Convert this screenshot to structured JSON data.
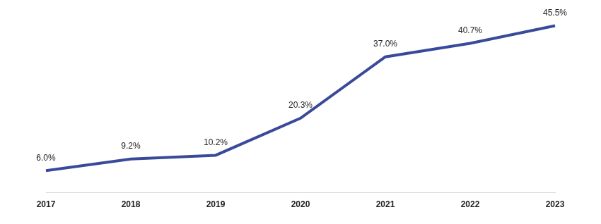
{
  "chart_data": {
    "type": "line",
    "categories": [
      "2017",
      "2018",
      "2019",
      "2020",
      "2021",
      "2022",
      "2023"
    ],
    "values": [
      6.0,
      9.2,
      10.2,
      20.3,
      37.0,
      40.7,
      45.5
    ],
    "value_labels": [
      "6.0%",
      "9.2%",
      "10.2%",
      "20.3%",
      "37.0%",
      "40.7%",
      "45.5%"
    ],
    "color": "#3a4a9a",
    "ylim": [
      0,
      50
    ],
    "yticks": [
      0,
      50
    ],
    "grid": false,
    "data_labels": true,
    "tick_labels": "x"
  }
}
